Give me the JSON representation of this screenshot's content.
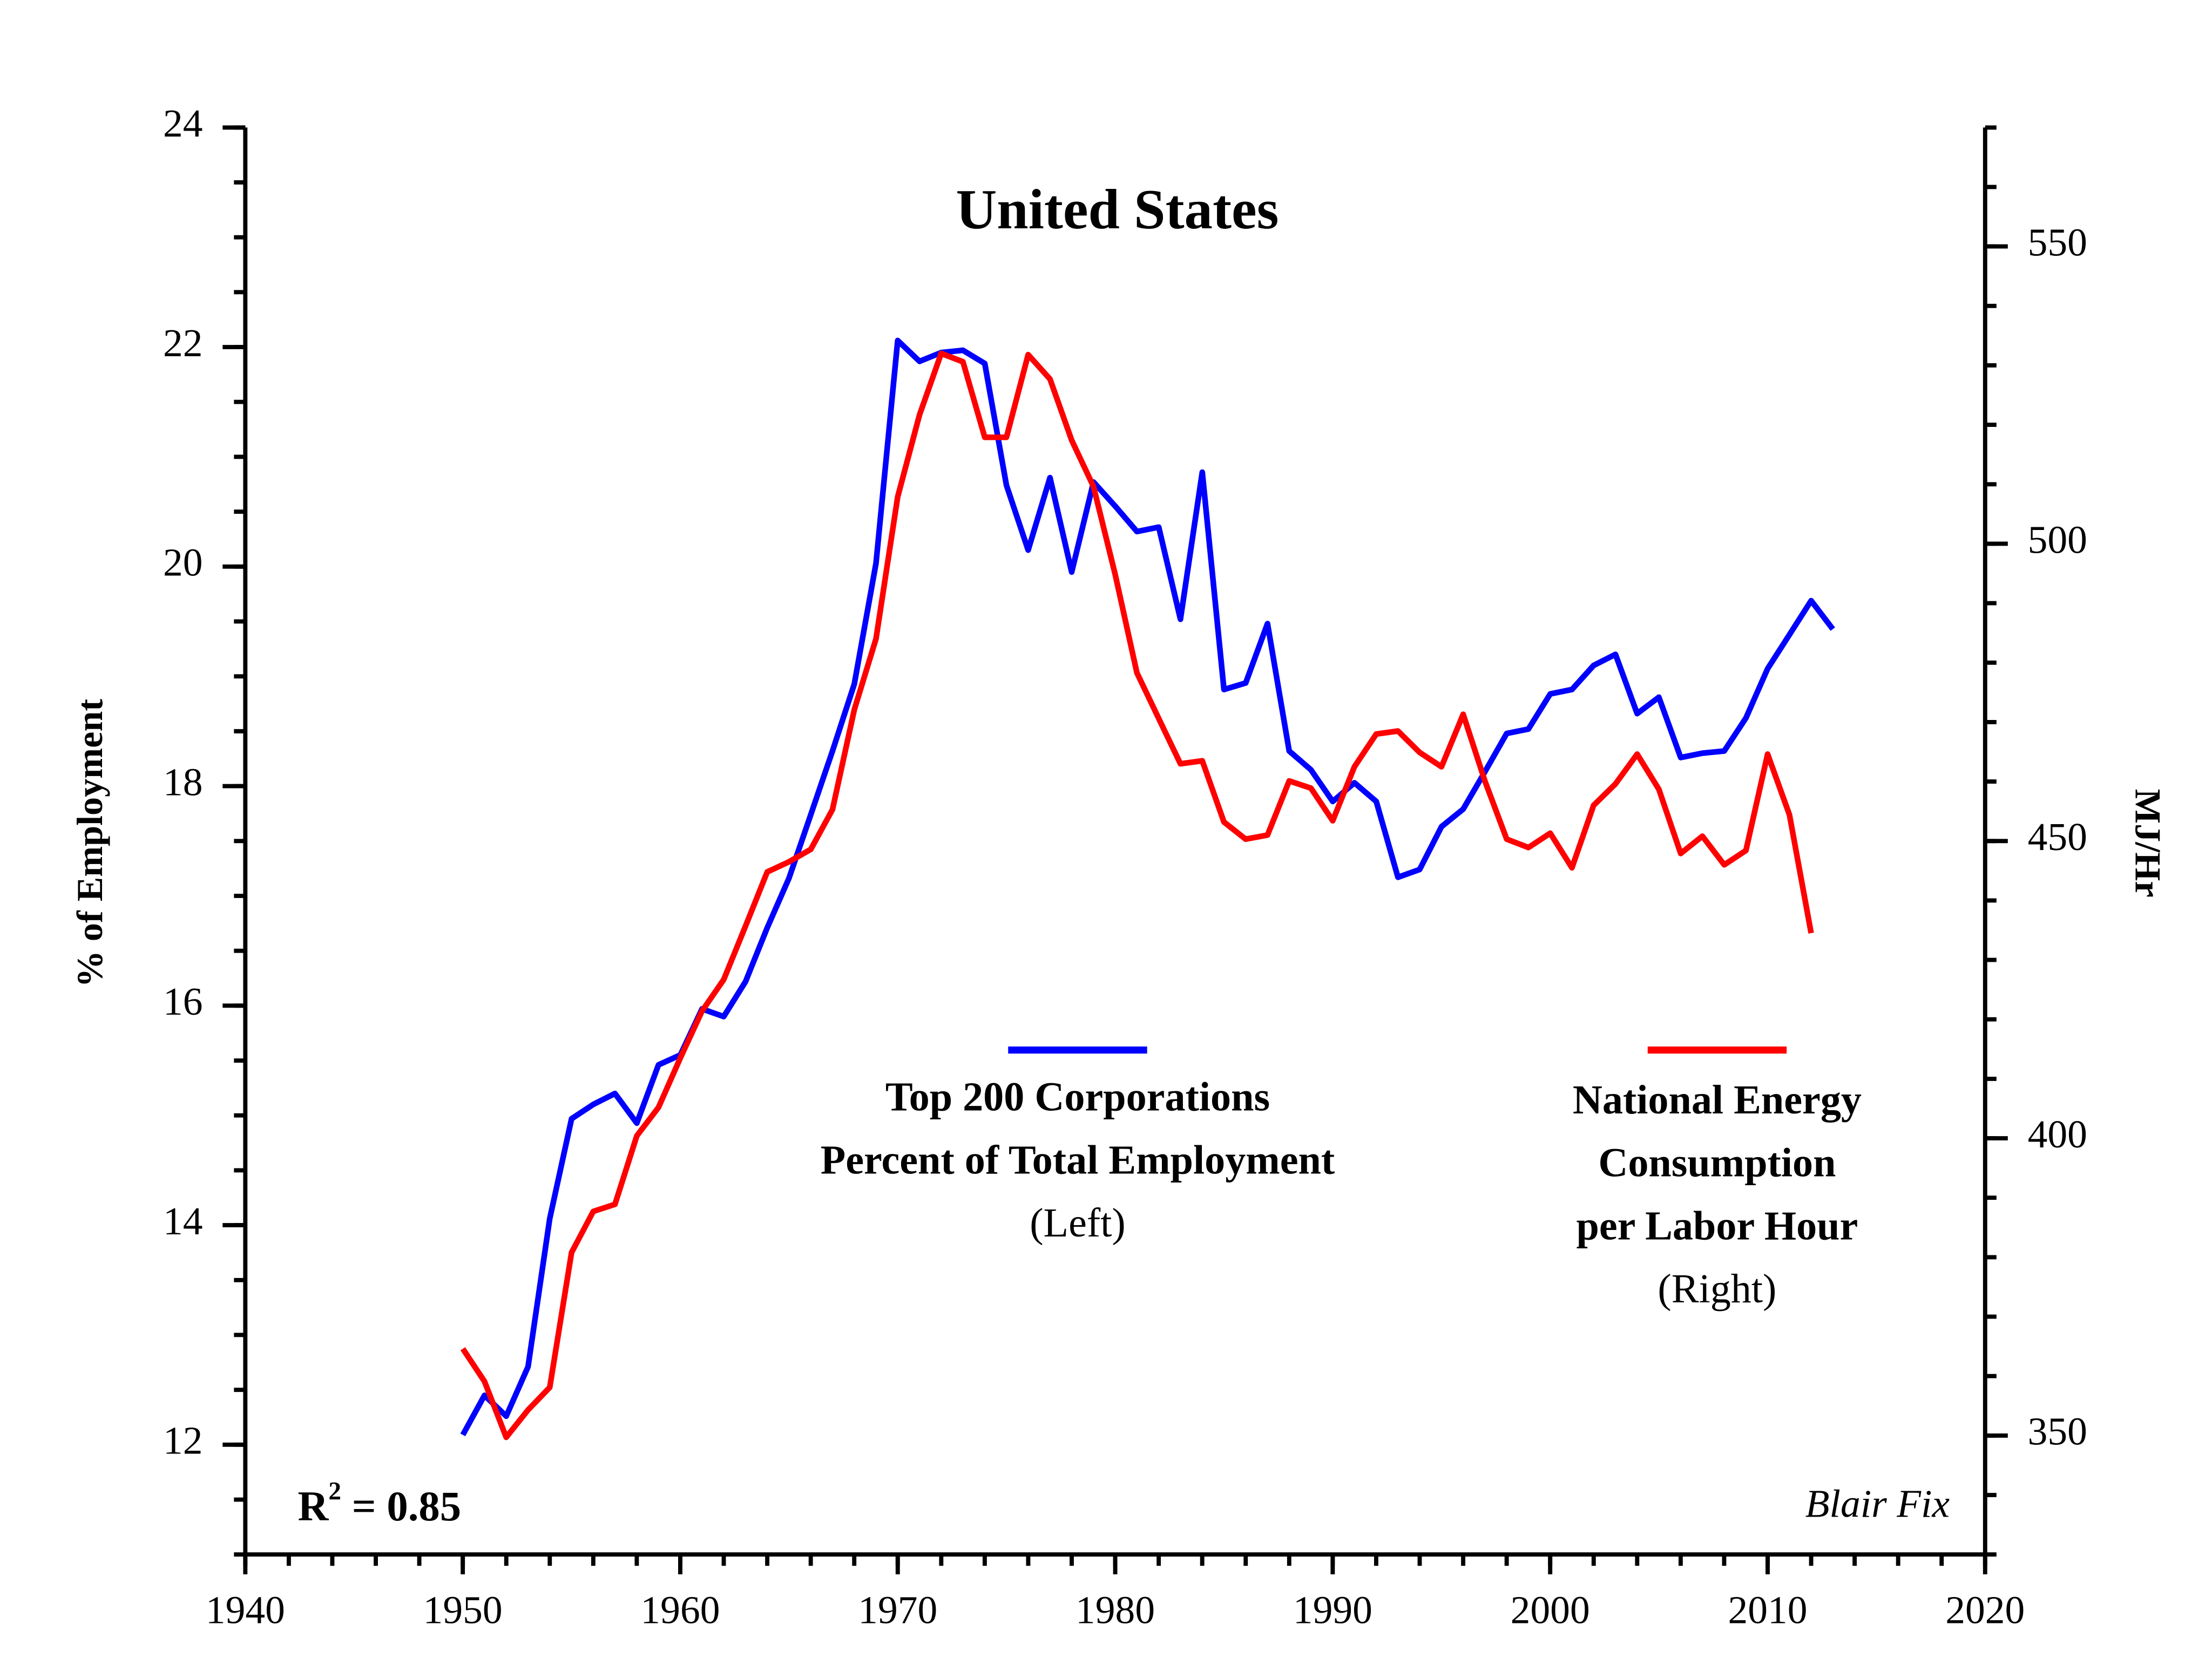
{
  "chart_data": {
    "type": "line",
    "title": "United States",
    "y_label": "% of Employment",
    "y2_label": "MJ/Hr",
    "annotation": {
      "base": "R",
      "superscript": "2",
      "rest": " = 0.85"
    },
    "credit": "Blair Fix",
    "x": [
      1950,
      1951,
      1952,
      1953,
      1954,
      1955,
      1956,
      1957,
      1958,
      1959,
      1960,
      1961,
      1962,
      1963,
      1964,
      1965,
      1966,
      1967,
      1968,
      1969,
      1970,
      1971,
      1972,
      1973,
      1974,
      1975,
      1976,
      1977,
      1978,
      1979,
      1980,
      1981,
      1982,
      1983,
      1984,
      1985,
      1986,
      1987,
      1988,
      1989,
      1990,
      1991,
      1992,
      1993,
      1994,
      1995,
      1996,
      1997,
      1998,
      1999,
      2000,
      2001,
      2002,
      2003,
      2004,
      2005,
      2006,
      2007,
      2008,
      2009,
      2010,
      2011,
      2012,
      2013
    ],
    "series": [
      {
        "name": [
          "Top 200 Corporations",
          "Percent of Total Employment"
        ],
        "axis_note": "(Left)",
        "color": "#0000ff",
        "axis": "y",
        "values": [
          12.09,
          12.45,
          12.26,
          12.71,
          14.06,
          14.97,
          15.1,
          15.2,
          14.93,
          15.46,
          15.55,
          15.97,
          15.9,
          16.22,
          16.71,
          17.16,
          17.74,
          18.32,
          18.93,
          20.03,
          22.06,
          21.87,
          21.95,
          21.97,
          21.85,
          20.74,
          20.15,
          20.81,
          19.95,
          20.77,
          20.55,
          20.32,
          20.36,
          19.52,
          20.86,
          18.88,
          18.94,
          19.48,
          18.32,
          18.15,
          17.86,
          18.03,
          17.86,
          17.17,
          17.24,
          17.63,
          17.79,
          18.13,
          18.48,
          18.52,
          18.84,
          18.88,
          19.1,
          19.2,
          18.66,
          18.81,
          18.26,
          18.3,
          18.32,
          18.62,
          19.07,
          19.38,
          19.69,
          19.43
        ]
      },
      {
        "name": [
          "National Energy",
          "Consumption",
          "per Labor Hour"
        ],
        "axis_note": "(Right)",
        "color": "#ff0000",
        "axis": "y2",
        "values": [
          364.6,
          359.1,
          349.7,
          354.3,
          358.1,
          380.8,
          387.7,
          388.9,
          400.4,
          405.2,
          413.5,
          421.4,
          426.7,
          435.7,
          444.8,
          446.5,
          448.6,
          455.3,
          472.1,
          484.0,
          507.9,
          521.7,
          532.0,
          530.6,
          517.9,
          517.9,
          531.8,
          527.7,
          517.4,
          509.6,
          494.8,
          478.3,
          470.6,
          463.0,
          463.5,
          453.2,
          450.3,
          451.0,
          460.1,
          458.9,
          453.4,
          462.5,
          468.0,
          468.5,
          464.9,
          462.5,
          471.3,
          460.1,
          450.3,
          448.9,
          451.3,
          445.5,
          456.0,
          459.6,
          464.6,
          458.7,
          447.9,
          450.8,
          446.0,
          448.4,
          464.6,
          454.4,
          434.5,
          null
        ]
      }
    ],
    "xlim": [
      1940,
      2020
    ],
    "xticks": [
      1940,
      1950,
      1960,
      1970,
      1980,
      1990,
      2000,
      2010,
      2020
    ],
    "ylim": [
      11,
      24
    ],
    "yticks": [
      12,
      14,
      16,
      18,
      20,
      22,
      24
    ],
    "y2lim": [
      330,
      570
    ],
    "y2ticks": [
      350,
      400,
      450,
      500,
      550
    ]
  }
}
